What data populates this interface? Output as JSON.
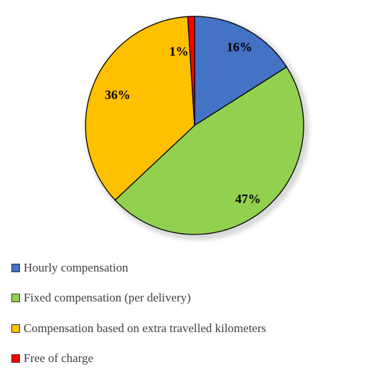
{
  "chart_data": {
    "type": "pie",
    "title": "",
    "start_angle_deg": 0,
    "direction": "clockwise",
    "legend_position": "bottom-left",
    "slices": [
      {
        "name": "Hourly compensation",
        "value": 16,
        "label": "16%",
        "color": "#4472C4"
      },
      {
        "name": "Fixed compensation (per delivery)",
        "value": 47,
        "label": "47%",
        "color": "#92D050"
      },
      {
        "name": "Compensation based on extra travelled kilometers",
        "value": 36,
        "label": "36%",
        "color": "#FFC000"
      },
      {
        "name": "Free of charge",
        "value": 1,
        "label": "1%",
        "color": "#FF0000"
      }
    ]
  }
}
